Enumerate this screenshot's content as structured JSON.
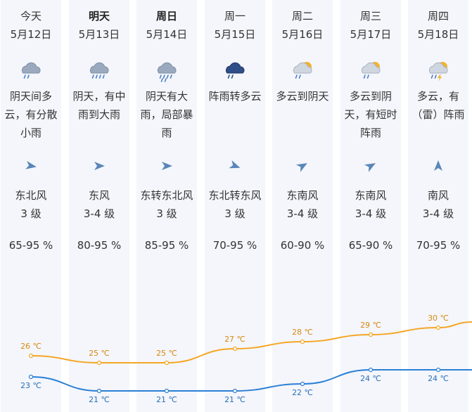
{
  "days": [
    {
      "day": "今天",
      "date": "5月12日",
      "bold": false,
      "weather": "阴天间多云，有分散小雨",
      "icon": "cloud-light-rain-icon",
      "wind_dir": "东北风",
      "wind_level": "3 级",
      "humidity": "65-95 %",
      "high": "26 ℃",
      "low": "23 ℃"
    },
    {
      "day": "明天",
      "date": "5月13日",
      "bold": true,
      "weather": "阴天，有中雨到大雨",
      "icon": "cloud-moderate-rain-icon",
      "wind_dir": "东风",
      "wind_level": "3-4 级",
      "humidity": "80-95 %",
      "high": "25 ℃",
      "low": "21 ℃"
    },
    {
      "day": "周日",
      "date": "5月14日",
      "bold": true,
      "weather": "阴天有大雨，局部暴雨",
      "icon": "cloud-heavy-rain-icon",
      "wind_dir": "东转东北风",
      "wind_level": "3 级",
      "humidity": "85-95 %",
      "high": "25 ℃",
      "low": "21 ℃"
    },
    {
      "day": "周一",
      "date": "5月15日",
      "bold": false,
      "weather": "阵雨转多云",
      "icon": "dark-cloud-shower-icon",
      "wind_dir": "东北转东风",
      "wind_level": "3 级",
      "humidity": "70-95 %",
      "high": "27 ℃",
      "low": "21 ℃"
    },
    {
      "day": "周二",
      "date": "5月16日",
      "bold": false,
      "weather": "多云到阴天",
      "icon": "sun-behind-clouds-icon",
      "wind_dir": "东南风",
      "wind_level": "3-4 级",
      "humidity": "60-90 %",
      "high": "28 ℃",
      "low": "22 ℃"
    },
    {
      "day": "周三",
      "date": "5月17日",
      "bold": false,
      "weather": "多云到阴天，有短时阵雨",
      "icon": "sun-cloud-shower-icon",
      "wind_dir": "东南风",
      "wind_level": "3-4 级",
      "humidity": "65-90 %",
      "high": "29 ℃",
      "low": "24 ℃"
    },
    {
      "day": "周四",
      "date": "5月18日",
      "bold": false,
      "weather": "多云，有（雷）阵雨",
      "icon": "sun-cloud-thunder-shower-icon",
      "wind_dir": "南风",
      "wind_level": "3-4 级",
      "humidity": "70-95 %",
      "high": "30 ℃",
      "low": "24 ℃"
    }
  ],
  "colors": {
    "high_line": "#f5a623",
    "low_line": "#2a7fd6",
    "arrow": "#5b86b8",
    "shade": "#f4f6fb"
  }
}
